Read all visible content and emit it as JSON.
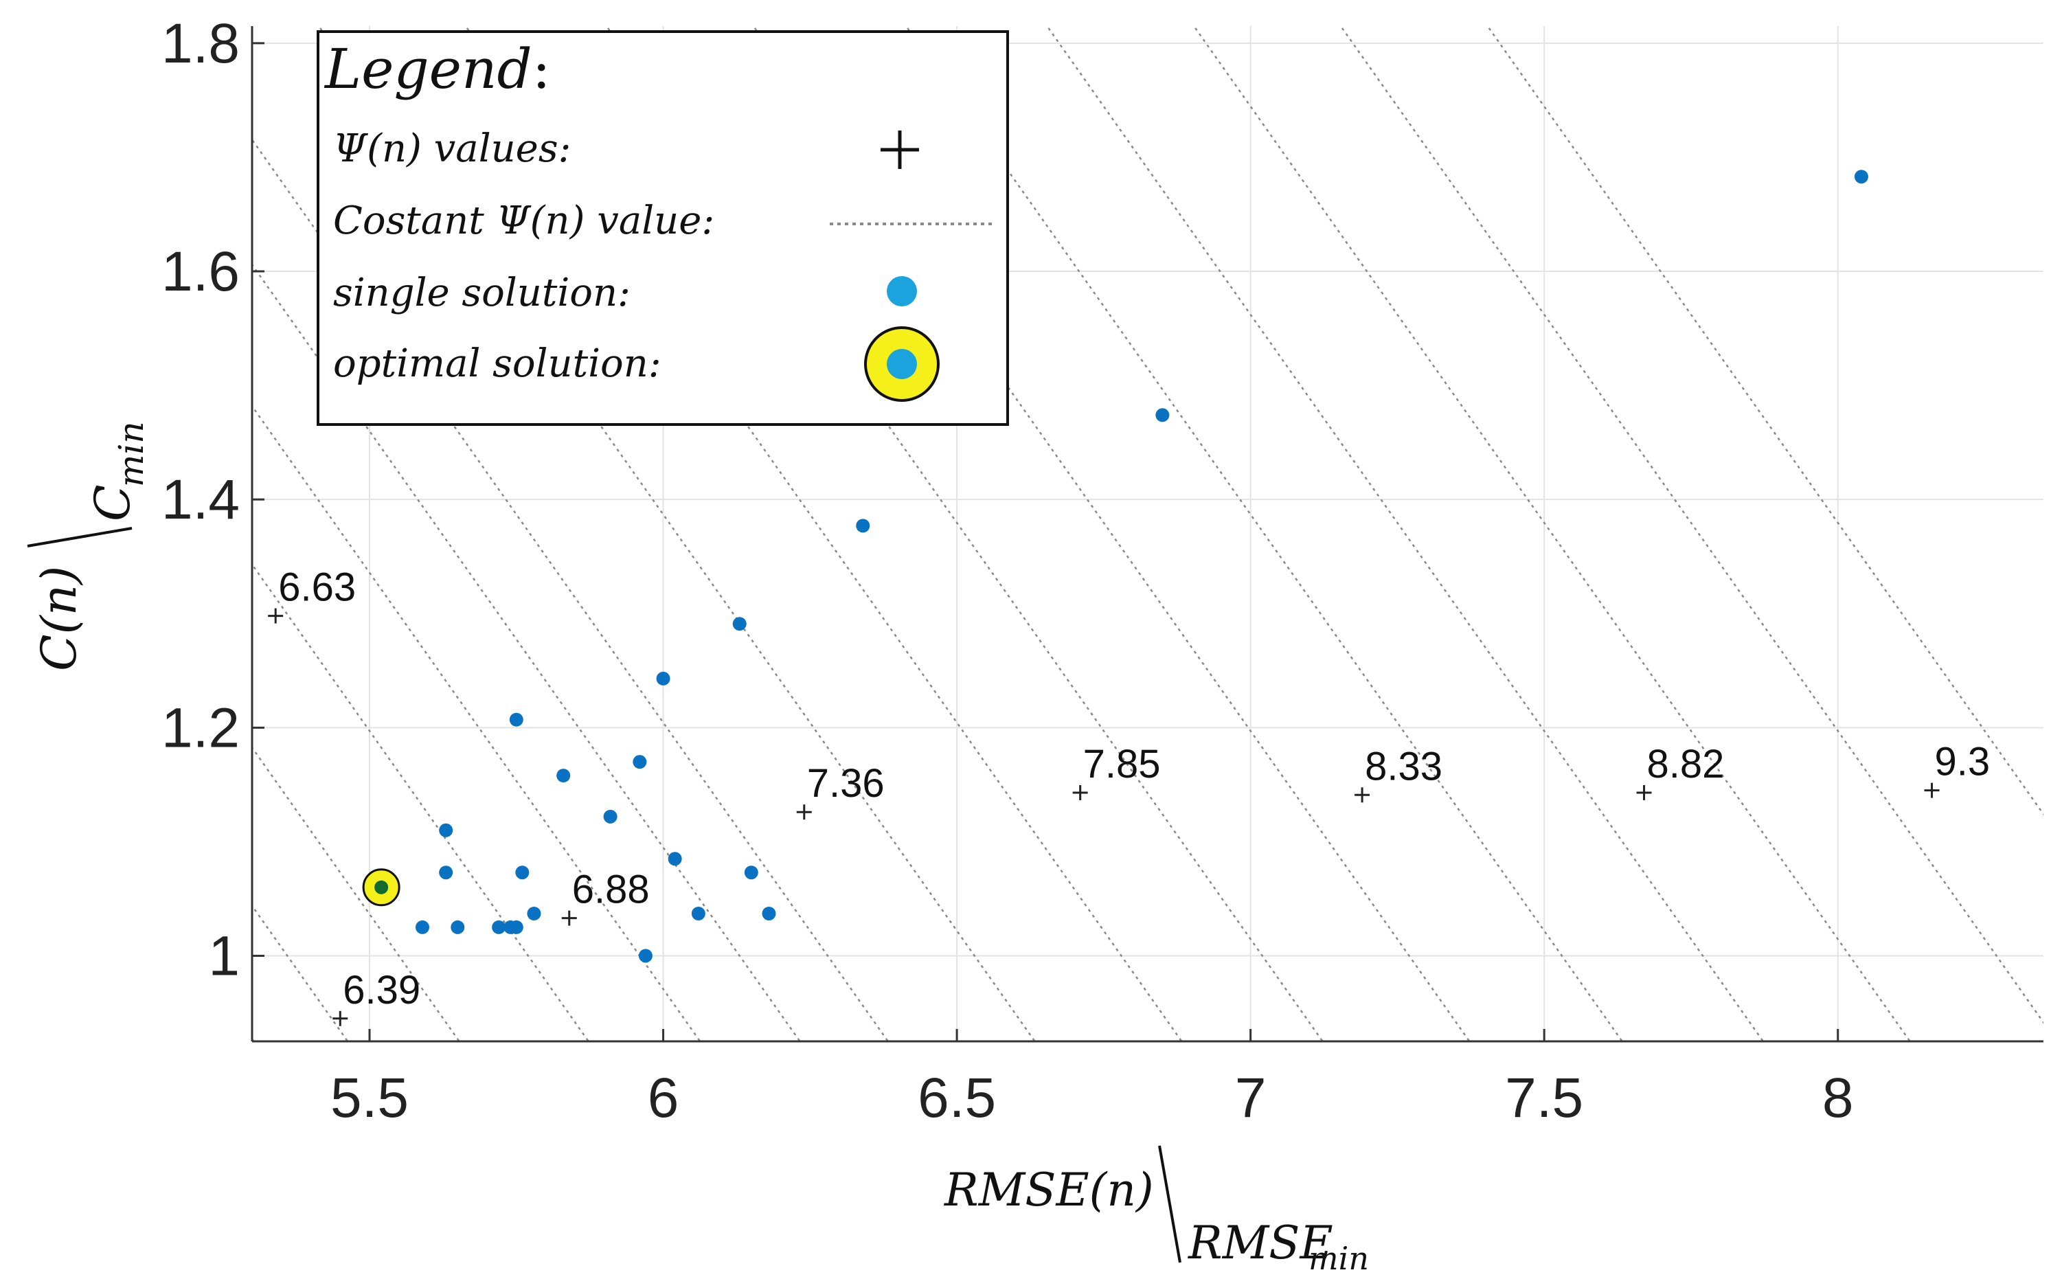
{
  "chart_data": {
    "type": "scatter",
    "x_axis": {
      "label_main": "RMSE(n)",
      "label_den": "RMSE",
      "label_den_sub": "min",
      "lim": [
        5.3,
        8.35
      ],
      "ticks": [
        5.5,
        6,
        6.5,
        7,
        7.5,
        8
      ],
      "tick_labels": [
        "5.5",
        "6",
        "6.5",
        "7",
        "7.5",
        "8"
      ]
    },
    "y_axis": {
      "label_main": "C(n)",
      "label_den": "C",
      "label_den_sub": "min",
      "lim": [
        0.925,
        1.815
      ],
      "ticks": [
        1,
        1.2,
        1.4,
        1.6,
        1.8
      ],
      "tick_labels": [
        "1",
        "1.2",
        "1.4",
        "1.6",
        "1.8"
      ]
    },
    "grid": true,
    "legend": {
      "placement": "top-left",
      "title": "Legend",
      "title_colon": ":",
      "entries": [
        {
          "label": "Ψ(n) values:",
          "marker": "plus"
        },
        {
          "label": "Costant Ψ(n) value:",
          "marker": "dotted-line"
        },
        {
          "label": "single solution:",
          "marker": "blue-dot"
        },
        {
          "label": "optimal solution:",
          "marker": "yellow-ring-dot"
        }
      ]
    },
    "single_solutions": {
      "name": "single solution",
      "color": "#0a72c2",
      "points": [
        [
          5.59,
          1.025
        ],
        [
          5.65,
          1.025
        ],
        [
          5.72,
          1.025
        ],
        [
          5.74,
          1.025
        ],
        [
          5.75,
          1.025
        ],
        [
          5.78,
          1.037
        ],
        [
          5.63,
          1.073
        ],
        [
          5.63,
          1.11
        ],
        [
          5.76,
          1.073
        ],
        [
          5.83,
          1.158
        ],
        [
          5.75,
          1.207
        ],
        [
          5.91,
          1.122
        ],
        [
          5.96,
          1.17
        ],
        [
          5.97,
          1.0
        ],
        [
          6.0,
          1.243
        ],
        [
          6.02,
          1.085
        ],
        [
          6.06,
          1.037
        ],
        [
          6.13,
          1.291
        ],
        [
          6.15,
          1.073
        ],
        [
          6.18,
          1.037
        ],
        [
          6.34,
          1.377
        ],
        [
          6.85,
          1.474
        ],
        [
          8.04,
          1.683
        ]
      ]
    },
    "optimal_solution": {
      "name": "optimal solution",
      "point": [
        5.52,
        1.06
      ],
      "ring_color": "#f5ef1a",
      "dot_color": "#0f6b2e"
    },
    "constant_psi_lines": {
      "style": "dotted",
      "color": "#888888",
      "slope_dy_dx": -0.73,
      "x_at_y1": [
        5.2,
        5.36,
        5.55,
        5.77,
        5.96,
        6.13,
        6.28,
        6.53,
        6.78,
        7.02,
        7.27,
        7.53,
        7.77,
        8.02,
        8.27,
        8.52
      ]
    },
    "psi_values": {
      "name": "Ψ(n) values",
      "marker": "+",
      "points": [
        {
          "x": 5.34,
          "y": 1.298,
          "label": "6.63"
        },
        {
          "x": 5.45,
          "y": 0.945,
          "label": "6.39"
        },
        {
          "x": 5.84,
          "y": 1.033,
          "label": "6.88"
        },
        {
          "x": 6.24,
          "y": 1.126,
          "label": "7.36"
        },
        {
          "x": 6.71,
          "y": 1.143,
          "label": "7.85"
        },
        {
          "x": 7.19,
          "y": 1.141,
          "label": "8.33"
        },
        {
          "x": 7.67,
          "y": 1.143,
          "label": "8.82"
        },
        {
          "x": 8.16,
          "y": 1.145,
          "label": "9.3"
        }
      ]
    }
  }
}
